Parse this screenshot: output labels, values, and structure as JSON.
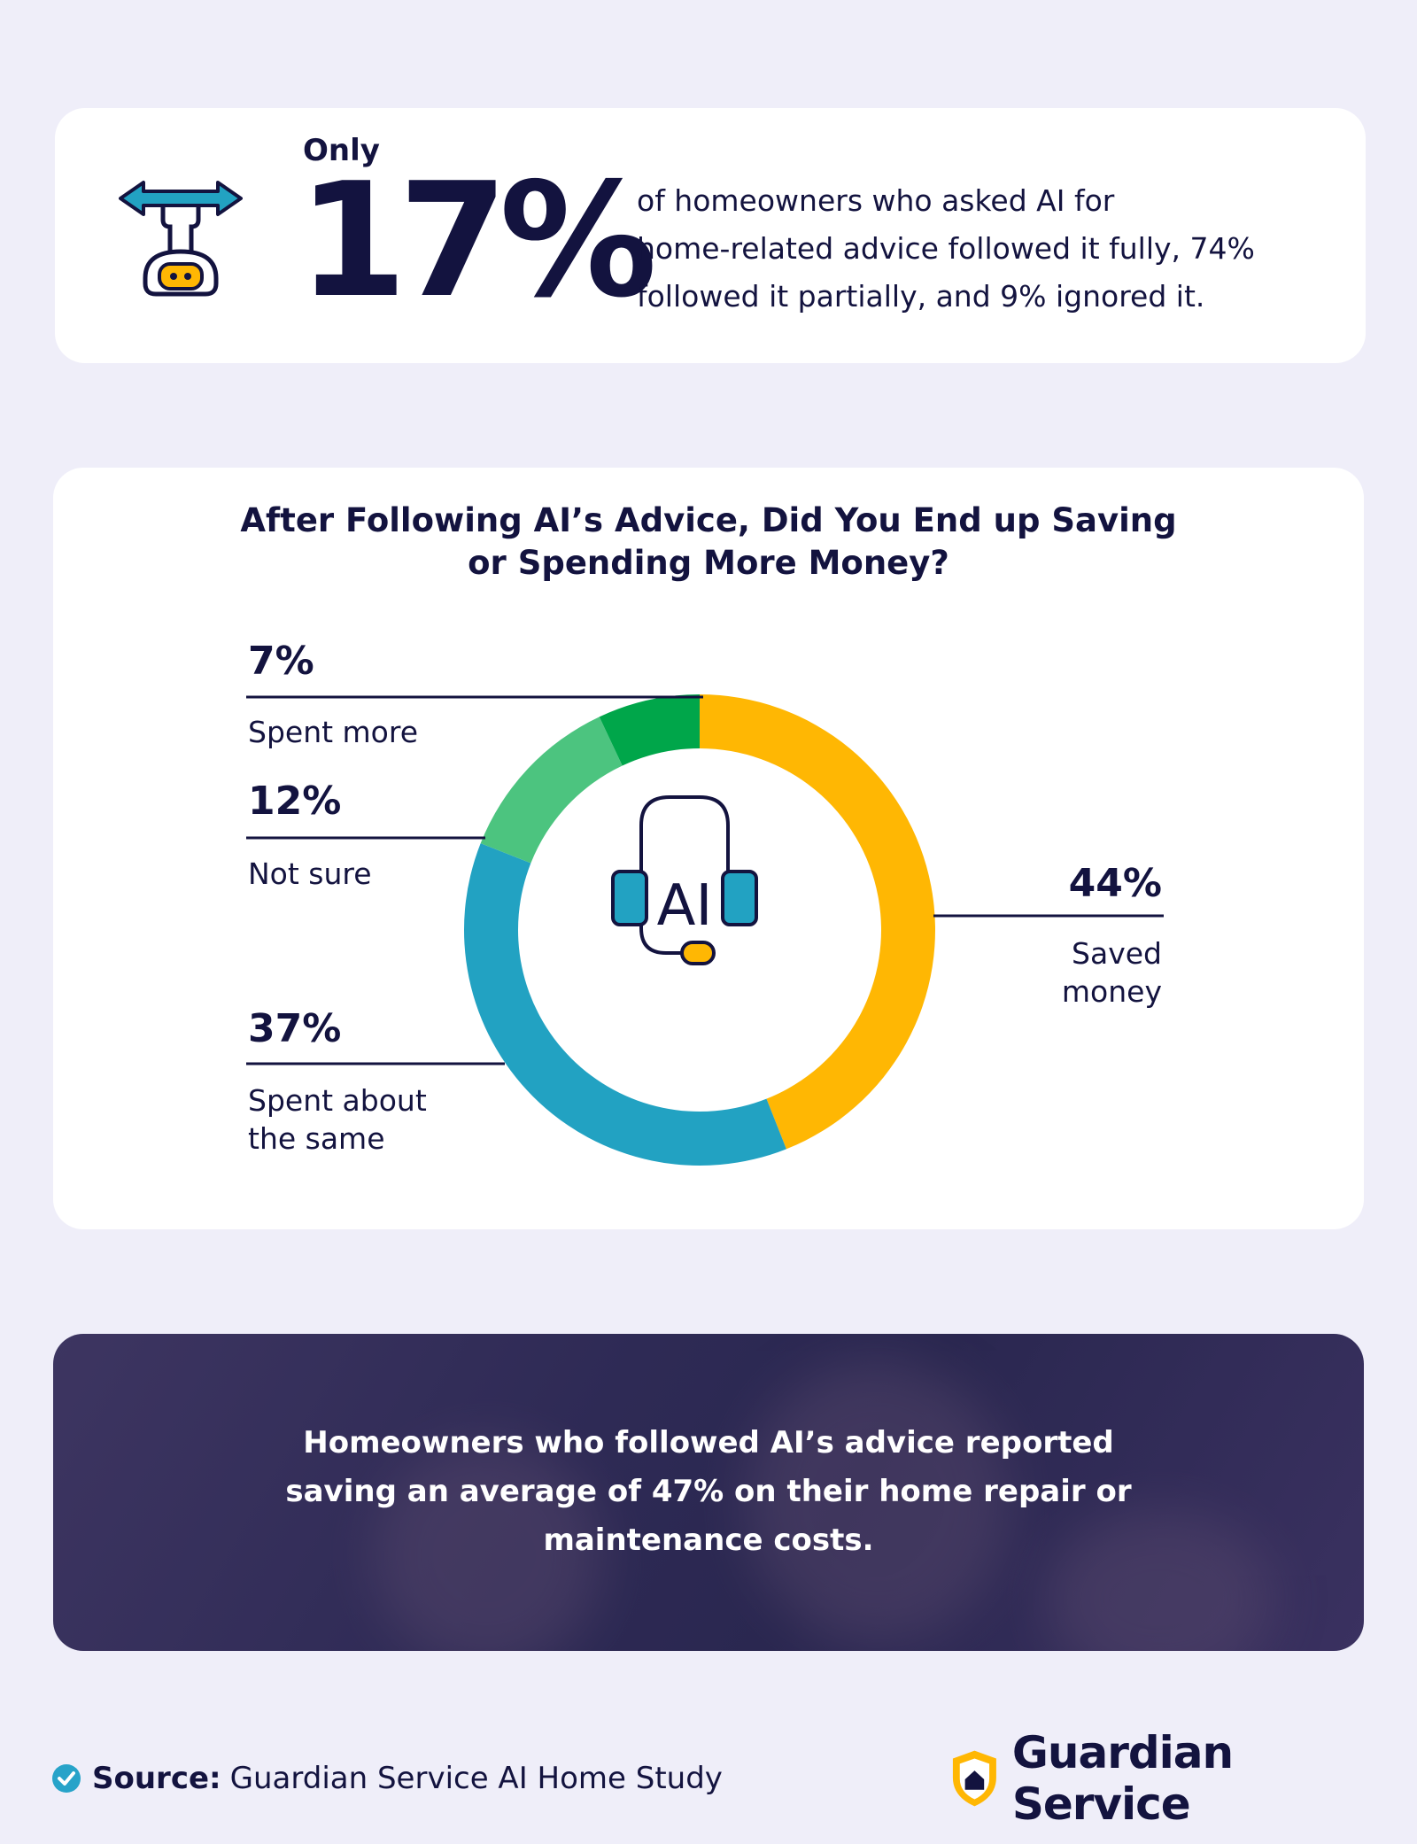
{
  "stat": {
    "prefix": "Only",
    "number": "17%",
    "description_lines": [
      "of homeowners who asked AI for",
      "home-related advice followed it fully, 74%",
      "followed it partially, and 9% ignored it."
    ]
  },
  "chart_data": {
    "type": "pie",
    "variant": "donut",
    "title_lines": [
      "After Following AI’s Advice, Did You End up Saving",
      "or Spending More Money?"
    ],
    "center_text": "AI",
    "slices": [
      {
        "label_lines": [
          "Saved",
          "money"
        ],
        "value": 44,
        "value_label": "44%",
        "color": "#ffb703"
      },
      {
        "label_lines": [
          "Spent about",
          "the same"
        ],
        "value": 37,
        "value_label": "37%",
        "color": "#22a2c2"
      },
      {
        "label_lines": [
          "Not sure"
        ],
        "value": 12,
        "value_label": "12%",
        "color": "#4cc47f"
      },
      {
        "label_lines": [
          "Spent more"
        ],
        "value": 7,
        "value_label": "7%",
        "color": "#00a64a"
      }
    ]
  },
  "banner": {
    "text_lines": [
      "Homeowners who followed AI’s advice reported",
      "saving an average of 47% on their home repair or",
      "maintenance costs."
    ]
  },
  "footer": {
    "source_label": "Source:",
    "source_text": "Guardian Service AI Home Study",
    "brand_name": "Guardian Service"
  },
  "colors": {
    "background": "#efeef9",
    "navy": "#13133f",
    "yellow": "#ffb703",
    "teal": "#22a2c2",
    "light_green": "#4cc47f",
    "green": "#00a64a",
    "check_blue": "#27a3c9"
  },
  "icons": [
    "robot-arm-icon",
    "ai-headset-icon",
    "check-icon",
    "shield-house-icon"
  ]
}
